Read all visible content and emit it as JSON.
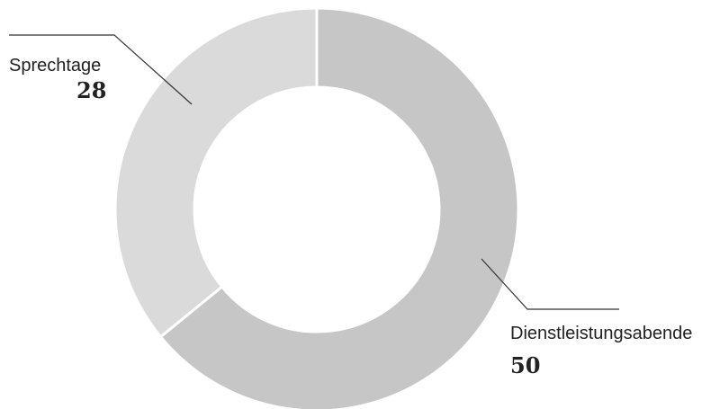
{
  "chart_data": {
    "type": "pie",
    "variant": "donut",
    "title": "",
    "slices": [
      {
        "label": "Dienstleistungsabende",
        "value": 50,
        "value_label": "50",
        "color": "#c6c6c6"
      },
      {
        "label": "Sprechtage",
        "value": 28,
        "value_label": "28",
        "color": "#dadada"
      }
    ],
    "separator_color": "#ffffff",
    "leader_line_color": "#333333",
    "legend": "none"
  }
}
